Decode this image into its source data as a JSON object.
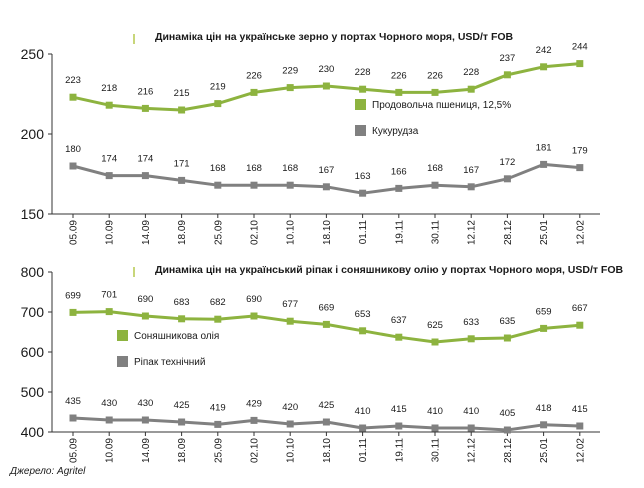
{
  "colors": {
    "green": "#8db33f",
    "gray": "#808080",
    "axis": "#333333",
    "accent": "#b5c94d"
  },
  "source": "Джерело: Agritel",
  "chart_data": [
    {
      "type": "line",
      "title": "Динаміка цін на українське зерно у портах Чорного моря, USD/т FOB",
      "categories": [
        "05.09",
        "10.09",
        "14.09",
        "18.09",
        "25.09",
        "02.10",
        "10.10",
        "18.10",
        "01.11",
        "19.11",
        "30.11",
        "12.12",
        "28.12",
        "25.01",
        "12.02"
      ],
      "ylim": [
        150,
        250
      ],
      "yticks": [
        150,
        200,
        250
      ],
      "series": [
        {
          "name": "Продовольча пшениця, 12,5%",
          "color": "#8db33f",
          "values": [
            223,
            218,
            216,
            215,
            219,
            226,
            229,
            230,
            228,
            226,
            226,
            228,
            237,
            242,
            244
          ]
        },
        {
          "name": "Кукурудза",
          "color": "#808080",
          "values": [
            180,
            174,
            174,
            171,
            168,
            168,
            168,
            167,
            163,
            166,
            168,
            167,
            172,
            181,
            179
          ]
        }
      ],
      "legend_position": "right-middle",
      "grid": false
    },
    {
      "type": "line",
      "title": "Динаміка цін на український ріпак і соняшникову олію у портах Чорного моря, USD/т FOB",
      "categories": [
        "05.09",
        "10.09",
        "14.09",
        "18.09",
        "25.09",
        "02.10",
        "10.10",
        "18.10",
        "01.11",
        "19.11",
        "30.11",
        "12.12",
        "28.12",
        "25.01",
        "12.02"
      ],
      "ylim": [
        400,
        800
      ],
      "yticks": [
        400,
        500,
        600,
        700,
        800
      ],
      "series": [
        {
          "name": "Соняшникова олія",
          "color": "#8db33f",
          "values": [
            699,
            701,
            690,
            683,
            682,
            690,
            677,
            669,
            653,
            637,
            625,
            633,
            635,
            659,
            667
          ]
        },
        {
          "name": "Ріпак технічний",
          "color": "#808080",
          "values": [
            435,
            430,
            430,
            425,
            419,
            429,
            420,
            425,
            410,
            415,
            410,
            410,
            405,
            418,
            415
          ]
        }
      ],
      "legend_position": "left-middle",
      "grid": false
    }
  ]
}
